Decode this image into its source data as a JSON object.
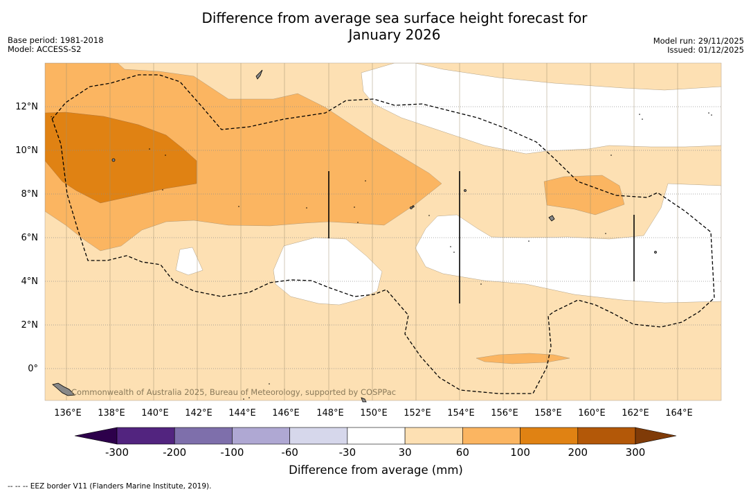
{
  "title_line1": "Difference from average sea surface height forecast for",
  "title_line2": "January 2026",
  "meta": {
    "base_period": "Base period: 1981-2018",
    "model": "Model: ACCESS-S2",
    "model_run": "Model run: 29/11/2025",
    "issued": "Issued: 01/12/2025"
  },
  "map": {
    "lon_labels": [
      "136°E",
      "138°E",
      "140°E",
      "142°E",
      "144°E",
      "146°E",
      "148°E",
      "150°E",
      "152°E",
      "154°E",
      "156°E",
      "158°E",
      "160°E",
      "162°E",
      "164°E"
    ],
    "lat_labels": [
      "12°N",
      "10°N",
      "8°N",
      "6°N",
      "4°N",
      "2°N",
      "0°"
    ],
    "copyright": "Commonwealth of Australia 2025, Bureau of Meteorology, supported by COSPPac"
  },
  "colorbar": {
    "title": "Difference from average (mm)",
    "ticks": [
      "-300",
      "-200",
      "-100",
      "-60",
      "-30",
      "30",
      "60",
      "100",
      "200",
      "300"
    ],
    "colors": [
      "#52247f",
      "#7e6fab",
      "#afa8d3",
      "#d6d7eb",
      "#ffffff",
      "#fde0b3",
      "#fbb561",
      "#e08213",
      "#b35808"
    ],
    "end_low": "#2d004b",
    "end_high": "#7f3b08"
  },
  "legend": {
    "eez_text": "-- -- -- EEZ border V11 (Flanders Marine Institute, 2019)."
  }
}
